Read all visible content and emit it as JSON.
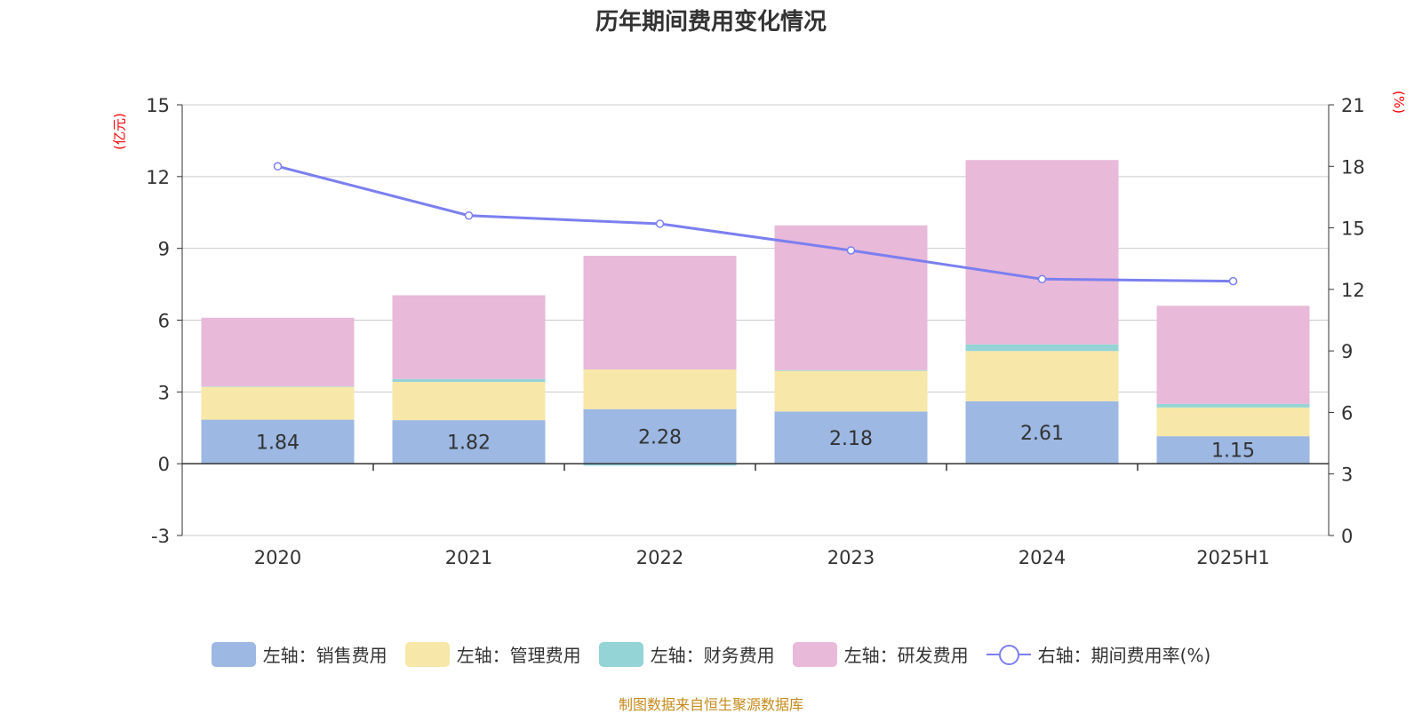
{
  "chart_data": {
    "type": "bar",
    "title": "历年期间费用变化情况",
    "ylabel": "(亿元)",
    "y2label": "(%)",
    "categories": [
      "2020",
      "2021",
      "2022",
      "2023",
      "2024",
      "2025H1"
    ],
    "ylim": [
      -3,
      15
    ],
    "yticks": [
      -3,
      0,
      3,
      6,
      9,
      12,
      15
    ],
    "y2lim": [
      0,
      21
    ],
    "y2ticks": [
      0,
      3,
      6,
      9,
      12,
      15,
      18,
      21
    ],
    "stacked": true,
    "grid": true,
    "legend_position": "bottom",
    "series": [
      {
        "name": "左轴：销售费用",
        "type": "bar",
        "color": "#9cb8e3",
        "values": [
          1.84,
          1.82,
          2.28,
          2.18,
          2.61,
          1.15
        ],
        "labels": [
          "1.84",
          "1.82",
          "2.28",
          "2.18",
          "2.61",
          "1.15"
        ]
      },
      {
        "name": "左轴：管理费用",
        "type": "bar",
        "color": "#f7e7a8",
        "values": [
          1.37,
          1.6,
          1.66,
          1.7,
          2.1,
          1.2
        ]
      },
      {
        "name": "左轴：财务费用",
        "type": "bar",
        "color": "#94d4d6",
        "values": [
          0.02,
          0.12,
          -0.08,
          0.03,
          0.28,
          0.15
        ]
      },
      {
        "name": "左轴：研发费用",
        "type": "bar",
        "color": "#e8b9d9",
        "values": [
          2.87,
          3.5,
          4.75,
          6.05,
          7.7,
          4.1
        ]
      },
      {
        "name": "右轴：期间费用率(%)",
        "type": "line",
        "axis": "right",
        "color": "#7b7ff0",
        "values": [
          18.0,
          15.6,
          15.2,
          13.9,
          12.5,
          12.4
        ]
      }
    ]
  },
  "source_note": "制图数据来自恒生聚源数据库"
}
